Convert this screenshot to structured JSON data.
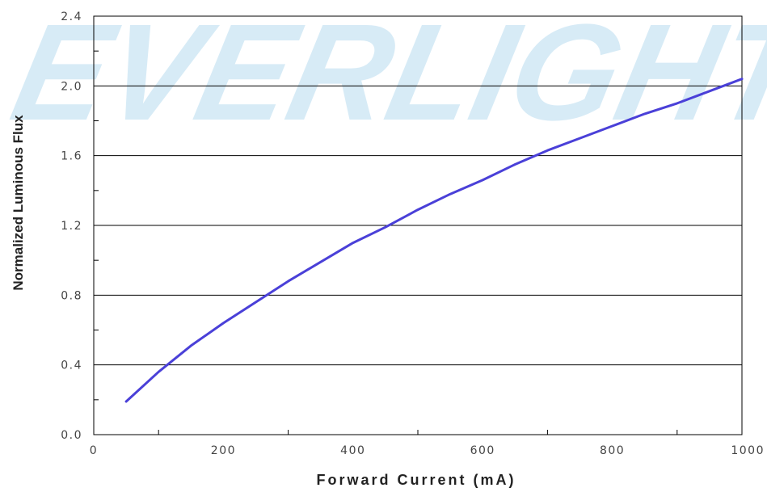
{
  "chart_data": {
    "type": "line",
    "title": "",
    "xlabel": "Forward Current (mA)",
    "ylabel": "Normalized Luminous Flux",
    "xlim": [
      0,
      1000
    ],
    "ylim": [
      0.0,
      2.4
    ],
    "x_ticks": [
      "0",
      "200",
      "400",
      "600",
      "800",
      "1000"
    ],
    "y_ticks": [
      "0.0",
      "0.4",
      "0.8",
      "1.2",
      "1.6",
      "2.0",
      "2.4"
    ],
    "grid": "horizontal",
    "watermark": "EVERLIGHT",
    "series": [
      {
        "color": "#4a40d8",
        "x": [
          50,
          100,
          150,
          200,
          250,
          300,
          350,
          400,
          450,
          500,
          550,
          600,
          650,
          700,
          750,
          800,
          850,
          900,
          950,
          1000
        ],
        "y": [
          0.19,
          0.36,
          0.51,
          0.64,
          0.76,
          0.88,
          0.99,
          1.1,
          1.19,
          1.29,
          1.38,
          1.46,
          1.55,
          1.63,
          1.7,
          1.77,
          1.84,
          1.9,
          1.97,
          2.04
        ]
      }
    ]
  }
}
